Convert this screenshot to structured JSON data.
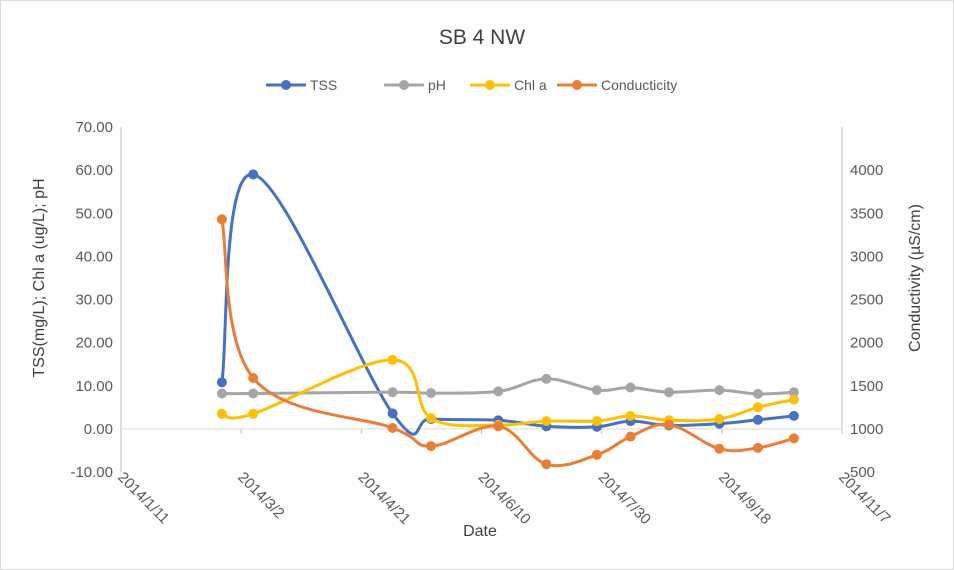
{
  "chart_data": {
    "type": "line",
    "title": "SB 4 NW",
    "xlabel": "Date",
    "ylabel": "TSS(mg/L); Chl a (ug/L); pH",
    "y2label": "Conductivity  (µS/cm)",
    "xlim": [
      "2014-01-11",
      "2014-11-07"
    ],
    "ylim": [
      -10,
      70
    ],
    "y2lim": [
      500,
      4000
    ],
    "x_tick_labels": [
      "2014/1/11",
      "2014/3/2",
      "2014/4/21",
      "2014/6/10",
      "2014/7/30",
      "2014/9/18",
      "2014/11/7"
    ],
    "x_tick_dates": [
      "2014-01-11",
      "2014-03-02",
      "2014-04-21",
      "2014-06-10",
      "2014-07-30",
      "2014-09-18",
      "2014-11-07"
    ],
    "y_tick_labels": [
      "-10.00",
      "0.00",
      "10.00",
      "20.00",
      "30.00",
      "40.00",
      "50.00",
      "60.00",
      "70.00"
    ],
    "y_tick_values": [
      -10,
      0,
      10,
      20,
      30,
      40,
      50,
      60,
      70
    ],
    "y2_tick_labels": [
      "500",
      "1000",
      "1500",
      "2000",
      "2500",
      "3000",
      "3500",
      "4000"
    ],
    "y2_tick_values": [
      500,
      1000,
      1500,
      2000,
      2500,
      3000,
      3500,
      4000
    ],
    "legend_position": "top",
    "grid": false,
    "series": [
      {
        "name": "TSS",
        "color": "#4472C4",
        "axis": "left",
        "x": [
          "2014-02-22",
          "2014-03-07",
          "2014-05-04",
          "2014-05-20",
          "2014-06-17",
          "2014-07-07",
          "2014-07-28",
          "2014-08-11",
          "2014-08-27",
          "2014-09-17",
          "2014-10-03",
          "2014-10-18"
        ],
        "y": [
          10.8,
          59.0,
          3.6,
          2.3,
          2.0,
          0.6,
          0.5,
          1.8,
          0.8,
          1.2,
          2.1,
          3.0
        ]
      },
      {
        "name": "pH",
        "color": "#A5A5A5",
        "axis": "left",
        "x": [
          "2014-02-22",
          "2014-03-07",
          "2014-05-04",
          "2014-05-20",
          "2014-06-17",
          "2014-07-07",
          "2014-07-28",
          "2014-08-11",
          "2014-08-27",
          "2014-09-17",
          "2014-10-03",
          "2014-10-18"
        ],
        "y": [
          8.2,
          8.2,
          8.5,
          8.3,
          8.7,
          11.6,
          9.0,
          9.6,
          8.5,
          9.0,
          8.1,
          8.5
        ]
      },
      {
        "name": "Chl a",
        "color": "#FFC000",
        "axis": "left",
        "x": [
          "2014-02-22",
          "2014-03-07",
          "2014-05-04",
          "2014-05-20",
          "2014-06-17",
          "2014-07-07",
          "2014-07-28",
          "2014-08-11",
          "2014-08-27",
          "2014-09-17",
          "2014-10-03",
          "2014-10-18"
        ],
        "y": [
          3.5,
          3.5,
          16.0,
          2.5,
          0.9,
          1.8,
          1.8,
          3.0,
          2.0,
          2.3,
          5.0,
          6.8
        ]
      },
      {
        "name": "Conducticity",
        "color": "#ED7D31",
        "axis": "right",
        "x": [
          "2014-02-22",
          "2014-03-07",
          "2014-05-04",
          "2014-05-20",
          "2014-06-17",
          "2014-07-07",
          "2014-07-28",
          "2014-08-11",
          "2014-08-27",
          "2014-09-17",
          "2014-10-03",
          "2014-10-18"
        ],
        "y": [
          3430,
          1590,
          1010,
          800,
          1030,
          590,
          700,
          910,
          1050,
          770,
          780,
          890
        ]
      }
    ]
  }
}
